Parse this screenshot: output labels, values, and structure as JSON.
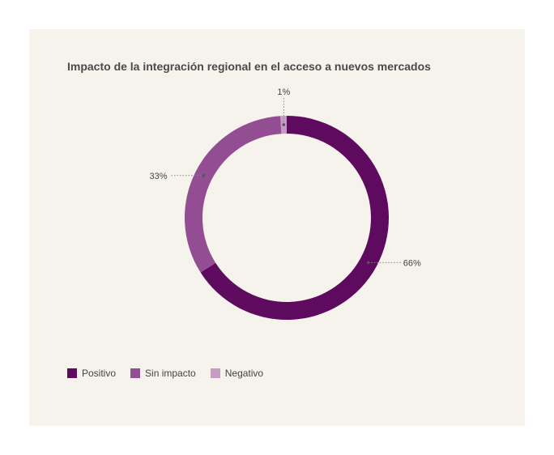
{
  "chart_data": {
    "type": "pie",
    "title": "Impacto de la integración regional en el acceso a nuevos mercados",
    "categories": [
      "Positivo",
      "Sin impacto",
      "Negativo"
    ],
    "values": [
      66,
      33,
      1
    ],
    "value_labels": [
      "66%",
      "33%",
      "1%"
    ],
    "colors": [
      "#5e0a5e",
      "#934d92",
      "#c49cc4"
    ],
    "legend_position": "bottom-left",
    "donut": true
  }
}
